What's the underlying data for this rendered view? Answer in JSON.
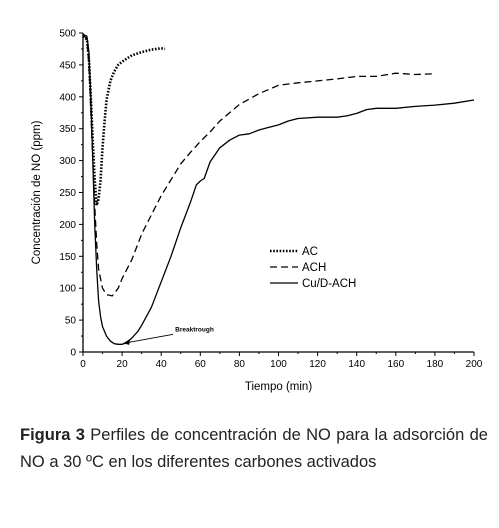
{
  "chart_data": {
    "type": "line",
    "xlabel": "Tiempo (min)",
    "ylabel": "Concentración de NO (ppm)",
    "xlim": [
      0,
      200
    ],
    "ylim": [
      0,
      500
    ],
    "x_ticks": [
      "0",
      "20",
      "40",
      "60",
      "80",
      "100",
      "120",
      "140",
      "160",
      "180",
      "200"
    ],
    "y_ticks": [
      "0",
      "50",
      "100",
      "150",
      "200",
      "250",
      "300",
      "350",
      "400",
      "450",
      "500"
    ],
    "grid": false,
    "legend_position": "center-right",
    "annotation": "Breaktrough",
    "annotation_point": [
      19,
      12
    ],
    "series": [
      {
        "name": "AC",
        "style": "dotted",
        "points": [
          [
            0,
            495
          ],
          [
            2,
            490
          ],
          [
            3,
            460
          ],
          [
            4,
            400
          ],
          [
            5,
            330
          ],
          [
            6,
            270
          ],
          [
            7,
            230
          ],
          [
            8,
            240
          ],
          [
            9,
            270
          ],
          [
            10,
            320
          ],
          [
            11,
            360
          ],
          [
            12,
            395
          ],
          [
            14,
            425
          ],
          [
            16,
            440
          ],
          [
            18,
            450
          ],
          [
            20,
            455
          ],
          [
            25,
            465
          ],
          [
            30,
            470
          ],
          [
            35,
            474
          ],
          [
            40,
            476
          ],
          [
            42,
            475
          ]
        ]
      },
      {
        "name": "ACH",
        "style": "dashed",
        "points": [
          [
            0,
            498
          ],
          [
            2,
            490
          ],
          [
            3,
            450
          ],
          [
            4,
            380
          ],
          [
            5,
            300
          ],
          [
            6,
            230
          ],
          [
            7,
            170
          ],
          [
            8,
            130
          ],
          [
            10,
            100
          ],
          [
            12,
            90
          ],
          [
            15,
            88
          ],
          [
            18,
            100
          ],
          [
            20,
            115
          ],
          [
            25,
            145
          ],
          [
            30,
            185
          ],
          [
            35,
            215
          ],
          [
            40,
            245
          ],
          [
            45,
            270
          ],
          [
            50,
            295
          ],
          [
            55,
            313
          ],
          [
            60,
            330
          ],
          [
            65,
            345
          ],
          [
            70,
            362
          ],
          [
            75,
            375
          ],
          [
            80,
            388
          ],
          [
            90,
            405
          ],
          [
            100,
            418
          ],
          [
            110,
            422
          ],
          [
            120,
            425
          ],
          [
            130,
            428
          ],
          [
            140,
            432
          ],
          [
            150,
            432
          ],
          [
            160,
            437
          ],
          [
            165,
            436
          ],
          [
            170,
            435
          ],
          [
            180,
            436
          ]
        ]
      },
      {
        "name": "Cu/D-ACH",
        "style": "solid",
        "points": [
          [
            0,
            498
          ],
          [
            2,
            495
          ],
          [
            3,
            470
          ],
          [
            4,
            400
          ],
          [
            5,
            300
          ],
          [
            6,
            200
          ],
          [
            7,
            130
          ],
          [
            8,
            80
          ],
          [
            9,
            55
          ],
          [
            10,
            40
          ],
          [
            12,
            25
          ],
          [
            14,
            17
          ],
          [
            16,
            13
          ],
          [
            18,
            12
          ],
          [
            20,
            12
          ],
          [
            22,
            14
          ],
          [
            25,
            22
          ],
          [
            28,
            32
          ],
          [
            30,
            42
          ],
          [
            35,
            70
          ],
          [
            40,
            110
          ],
          [
            45,
            150
          ],
          [
            50,
            195
          ],
          [
            55,
            235
          ],
          [
            58,
            262
          ],
          [
            60,
            268
          ],
          [
            62,
            272
          ],
          [
            65,
            298
          ],
          [
            70,
            320
          ],
          [
            75,
            332
          ],
          [
            80,
            340
          ],
          [
            85,
            342
          ],
          [
            90,
            348
          ],
          [
            95,
            352
          ],
          [
            100,
            356
          ],
          [
            105,
            362
          ],
          [
            110,
            366
          ],
          [
            120,
            368
          ],
          [
            130,
            368
          ],
          [
            135,
            370
          ],
          [
            140,
            374
          ],
          [
            145,
            380
          ],
          [
            150,
            382
          ],
          [
            160,
            382
          ],
          [
            170,
            385
          ],
          [
            180,
            387
          ],
          [
            190,
            390
          ],
          [
            200,
            395
          ]
        ]
      }
    ]
  },
  "caption": {
    "label": "Figura 3",
    "text": " Perfiles de concentración de NO  para la adsorción de NO a 30 ºC en los diferentes carbones activados"
  }
}
